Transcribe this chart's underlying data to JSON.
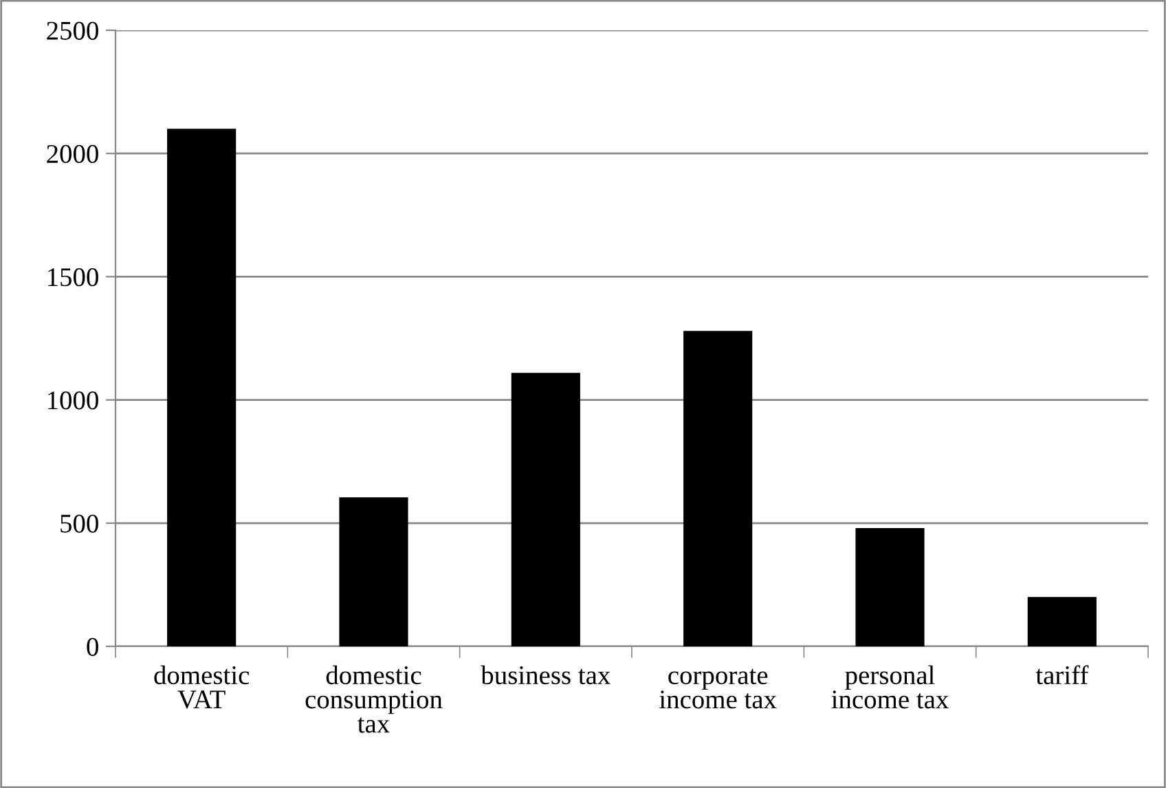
{
  "chart_data": {
    "type": "bar",
    "categories": [
      "domestic\nVAT",
      "domestic\nconsumption\ntax",
      "business tax",
      "corporate\nincome tax",
      "personal\nincome tax",
      "tariff"
    ],
    "values": [
      2100,
      605,
      1110,
      1280,
      480,
      200
    ],
    "color": "#000000",
    "ylim": [
      0,
      2500
    ],
    "yticks": [
      0,
      500,
      1000,
      1500,
      2000,
      2500
    ],
    "grid": "y",
    "legend": false
  }
}
